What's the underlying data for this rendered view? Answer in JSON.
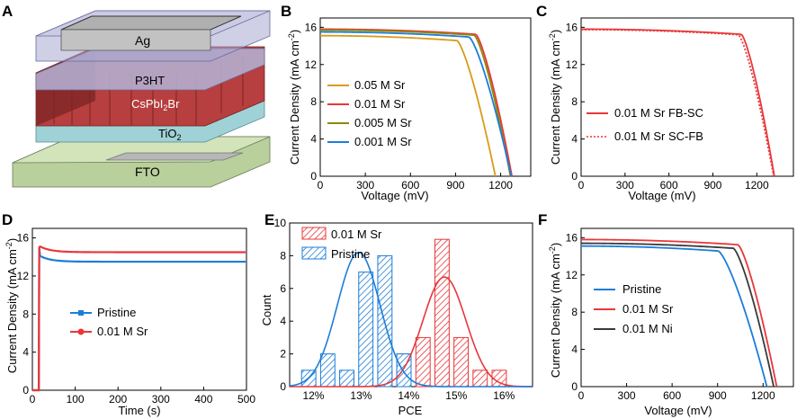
{
  "colors": {
    "orange": "#d99b16",
    "red": "#e8373a",
    "olive": "#8d8a0c",
    "blue": "#1c7dd8",
    "dark": "#3a3a3a",
    "ag": "#c8c8c8",
    "p3ht": "#b5b5d6",
    "perov": "#c64a4a",
    "tio2": "#a8d8dc",
    "fto": "#c9dcae"
  },
  "panel_labels": [
    "A",
    "B",
    "C",
    "D",
    "E",
    "F"
  ],
  "panelA": {
    "layers": [
      "Ag",
      "P3HT",
      "CsPbI",
      "2",
      "Br",
      "TiO",
      "2",
      "FTO"
    ]
  },
  "chart_data": [
    {
      "panel": "B",
      "type": "line",
      "xlabel": "Voltage (mV)",
      "ylabel": "Current Density (mA cm",
      "ylabel_sup": "-2",
      "ylabel_end": ")",
      "xlim": [
        0,
        1400
      ],
      "ylim": [
        0,
        17
      ],
      "xticks": [
        0,
        300,
        600,
        900,
        1200
      ],
      "yticks": [
        0,
        4,
        8,
        12,
        16
      ],
      "legend_position": "bottom-left",
      "series": [
        {
          "name": "0.05 M Sr",
          "color": "#d99b16",
          "jsc": 15.1,
          "voc": 1165,
          "vk": 910,
          "n": 3.5
        },
        {
          "name": "0.01 M Sr",
          "color": "#e8373a",
          "jsc": 15.8,
          "voc": 1275,
          "vk": 1035,
          "n": 4
        },
        {
          "name": "0.005 M Sr",
          "color": "#8d8a0c",
          "jsc": 15.7,
          "voc": 1265,
          "vk": 1025,
          "n": 4
        },
        {
          "name": "0.001 M Sr",
          "color": "#1c7dd8",
          "jsc": 15.5,
          "voc": 1270,
          "vk": 990,
          "n": 4
        }
      ]
    },
    {
      "panel": "C",
      "type": "line",
      "xlabel": "Voltage (mV)",
      "ylabel": "Current Density (mA cm",
      "ylabel_sup": "-2",
      "ylabel_end": ")",
      "xlim": [
        0,
        1450
      ],
      "ylim": [
        0,
        17
      ],
      "xticks": [
        0,
        300,
        600,
        900,
        1200
      ],
      "yticks": [
        0,
        4,
        8,
        12,
        16
      ],
      "legend_position": "middle-left",
      "series": [
        {
          "name": "0.01 M Sr  FB-SC",
          "color": "#e8373a",
          "style": "solid",
          "jsc": 15.8,
          "voc": 1320,
          "vk": 1095,
          "n": 4
        },
        {
          "name": "0.01 M Sr  SC-FB",
          "color": "#e8373a",
          "style": "dotted",
          "jsc": 15.75,
          "voc": 1315,
          "vk": 1075,
          "n": 4
        }
      ]
    },
    {
      "panel": "D",
      "type": "line",
      "xlabel": "Time (s)",
      "ylabel": "Current Density (mA cm",
      "ylabel_sup": "-2",
      "ylabel_end": ")",
      "xlim": [
        0,
        500
      ],
      "ylim": [
        0,
        17
      ],
      "xticks": [
        0,
        100,
        200,
        300,
        400,
        500
      ],
      "yticks": [
        0,
        4,
        8,
        12,
        16
      ],
      "legend_position": "bottom-left",
      "series": [
        {
          "name": "Pristine",
          "color": "#1c7dd8",
          "start": 15,
          "peak": 14.1,
          "steady": 13.5
        },
        {
          "name": "0.01 M Sr",
          "color": "#e8373a",
          "start": 15,
          "peak": 15.1,
          "steady": 14.5
        }
      ]
    },
    {
      "panel": "E",
      "type": "bar",
      "xlabel": "PCE",
      "ylabel": "Count",
      "xlim": [
        11.5,
        16.6
      ],
      "ylim": [
        0,
        10
      ],
      "xticks": [
        "12%",
        "13%",
        "14%",
        "15%",
        "16%"
      ],
      "xtick_values": [
        12,
        13,
        14,
        15,
        16
      ],
      "yticks": [
        0,
        2,
        4,
        6,
        8,
        10
      ],
      "legend_position": "top-left",
      "series": [
        {
          "name": "0.01 M Sr",
          "color": "#e8373a",
          "bin_centers": [
            13.5,
            13.9,
            14.3,
            14.7,
            15.1,
            15.5,
            15.9
          ],
          "counts": [
            1,
            2,
            3,
            9,
            3,
            1,
            1
          ],
          "fit": {
            "mu": 14.75,
            "sigma": 0.45,
            "amp": 6.7
          }
        },
        {
          "name": "Pristine",
          "color": "#1c7dd8",
          "bin_centers": [
            11.9,
            12.3,
            12.7,
            13.1,
            13.5,
            13.9
          ],
          "counts": [
            1,
            2,
            1,
            7,
            8,
            2
          ],
          "fit": {
            "mu": 12.95,
            "sigma": 0.45,
            "amp": 8.2
          }
        }
      ],
      "bin_width": 0.3
    },
    {
      "panel": "F",
      "type": "line",
      "xlabel": "Voltage (mV)",
      "ylabel": "Current Density (mA cm",
      "ylabel_sup": "-2",
      "ylabel_end": ")",
      "xlim": [
        0,
        1400
      ],
      "ylim": [
        0,
        17
      ],
      "xticks": [
        0,
        300,
        600,
        900,
        1200
      ],
      "yticks": [
        0,
        4,
        8,
        12,
        16
      ],
      "legend_position": "bottom-left",
      "series": [
        {
          "name": "Pristine",
          "color": "#1c7dd8",
          "jsc": 15.1,
          "voc": 1225,
          "vk": 905,
          "n": 3.5
        },
        {
          "name": "0.01 M Sr",
          "color": "#e8373a",
          "jsc": 15.8,
          "voc": 1290,
          "vk": 1035,
          "n": 4
        },
        {
          "name": "0.01 M Ni",
          "color": "#3a3a3a",
          "jsc": 15.4,
          "voc": 1270,
          "vk": 1005,
          "n": 4
        }
      ]
    }
  ]
}
